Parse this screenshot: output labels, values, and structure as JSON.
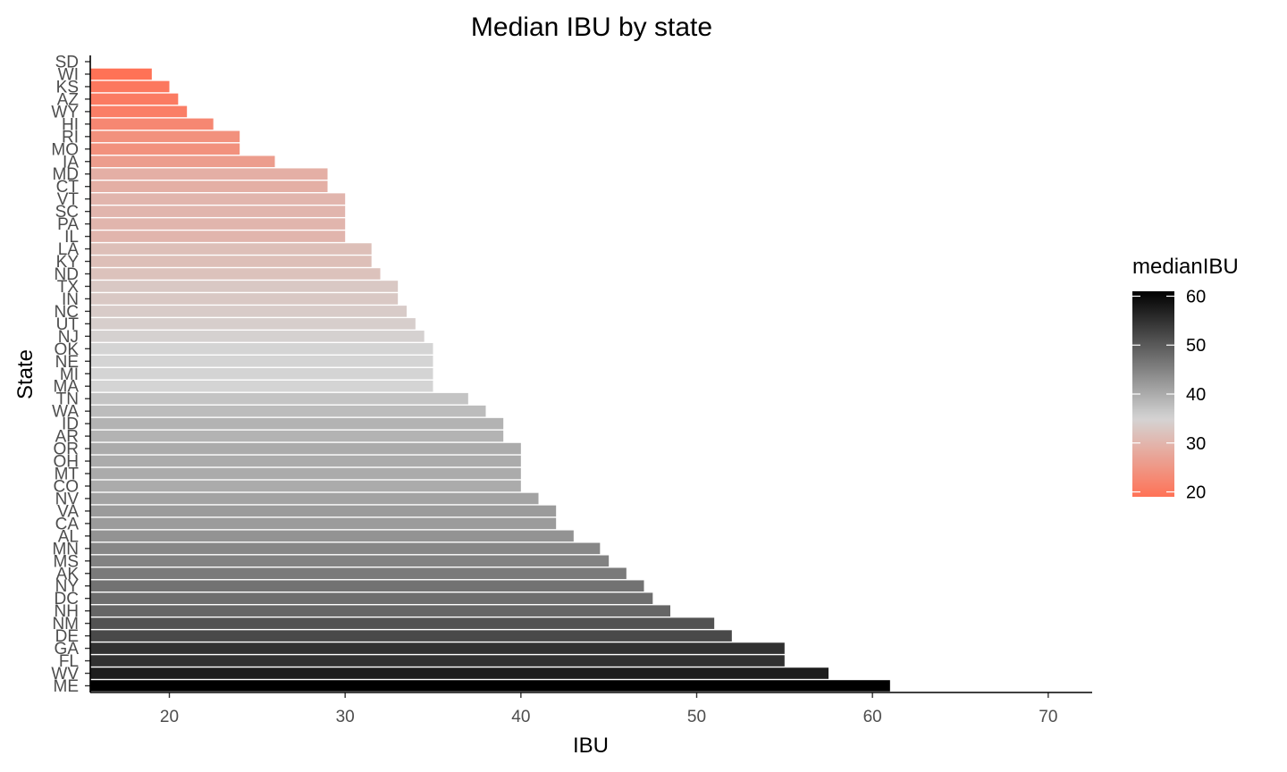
{
  "chart_data": {
    "type": "bar",
    "orientation": "horizontal",
    "title": "Median IBU by state",
    "xlabel": "IBU",
    "ylabel": "State",
    "xlim": [
      15.5,
      72.5
    ],
    "xticks": [
      20,
      30,
      40,
      50,
      60,
      70
    ],
    "grid": false,
    "categories": [
      "SD",
      "WI",
      "KS",
      "AZ",
      "WY",
      "HI",
      "RI",
      "MO",
      "IA",
      "MD",
      "CT",
      "VT",
      "SC",
      "PA",
      "IL",
      "LA",
      "KY",
      "ND",
      "TX",
      "IN",
      "NC",
      "UT",
      "NJ",
      "OK",
      "NE",
      "MI",
      "MA",
      "TN",
      "WA",
      "ID",
      "AR",
      "OR",
      "OH",
      "MT",
      "CO",
      "NV",
      "VA",
      "CA",
      "AL",
      "MN",
      "MS",
      "AK",
      "NY",
      "DC",
      "NH",
      "NM",
      "DE",
      "GA",
      "FL",
      "WV",
      "ME"
    ],
    "values": [
      null,
      19,
      20,
      20.5,
      21,
      22.5,
      24,
      24,
      26,
      29,
      29,
      30,
      30,
      30,
      30,
      31.5,
      31.5,
      32,
      33,
      33,
      33.5,
      34,
      34.5,
      35,
      35,
      35,
      35,
      37,
      38,
      39,
      39,
      40,
      40,
      40,
      40,
      41,
      42,
      42,
      43,
      44.5,
      45,
      46,
      47,
      47.5,
      48.5,
      51,
      52,
      55,
      55,
      57.5,
      61
    ],
    "legend": {
      "title": "medianIBU",
      "position": "right",
      "ticks": [
        20,
        30,
        40,
        50,
        60
      ],
      "range": [
        19,
        61
      ],
      "color_stops": [
        {
          "value": 19,
          "color": "#ff7256"
        },
        {
          "value": 35,
          "color": "#d4d4d4"
        },
        {
          "value": 61,
          "color": "#000000"
        }
      ]
    }
  }
}
